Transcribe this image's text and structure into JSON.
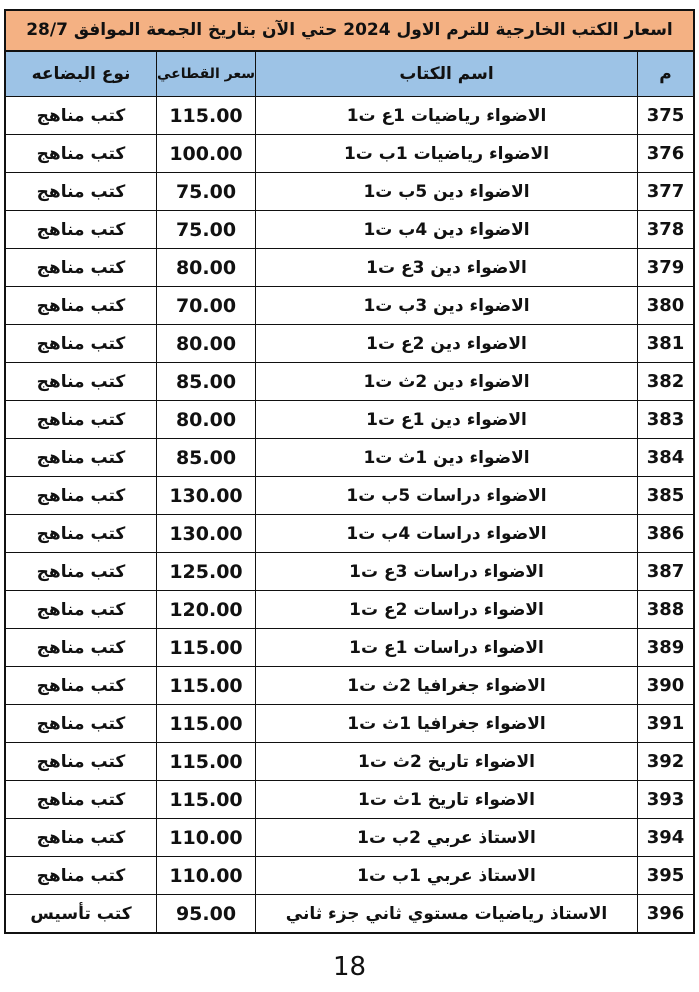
{
  "title": "اسعار الكتب الخارجية للترم الاول 2024 حتي الآن بتاريخ الجمعة الموافق 28/7",
  "headers": {
    "no": "م",
    "name": "اسم الكتاب",
    "price": "سعر القطاعي",
    "type": "نوع البضاعه"
  },
  "rows": [
    {
      "no": "375",
      "name": "الاضواء رياضيات 1ع ت1",
      "price": "115.00",
      "type": "كتب مناهج"
    },
    {
      "no": "376",
      "name": "الاضواء رياضيات 1ب ت1",
      "price": "100.00",
      "type": "كتب مناهج"
    },
    {
      "no": "377",
      "name": "الاضواء دين 5ب ت1",
      "price": "75.00",
      "type": "كتب مناهج"
    },
    {
      "no": "378",
      "name": "الاضواء دين 4ب ت1",
      "price": "75.00",
      "type": "كتب مناهج"
    },
    {
      "no": "379",
      "name": "الاضواء دين 3ع ت1",
      "price": "80.00",
      "type": "كتب مناهج"
    },
    {
      "no": "380",
      "name": "الاضواء دين 3ب ت1",
      "price": "70.00",
      "type": "كتب مناهج"
    },
    {
      "no": "381",
      "name": "الاضواء دين 2ع ت1",
      "price": "80.00",
      "type": "كتب مناهج"
    },
    {
      "no": "382",
      "name": "الاضواء دين 2ث ت1",
      "price": "85.00",
      "type": "كتب مناهج"
    },
    {
      "no": "383",
      "name": "الاضواء دين 1ع ت1",
      "price": "80.00",
      "type": "كتب مناهج"
    },
    {
      "no": "384",
      "name": "الاضواء دين 1ث ت1",
      "price": "85.00",
      "type": "كتب مناهج"
    },
    {
      "no": "385",
      "name": "الاضواء دراسات 5ب ت1",
      "price": "130.00",
      "type": "كتب مناهج"
    },
    {
      "no": "386",
      "name": "الاضواء دراسات 4ب ت1",
      "price": "130.00",
      "type": "كتب مناهج"
    },
    {
      "no": "387",
      "name": "الاضواء دراسات 3ع ت1",
      "price": "125.00",
      "type": "كتب مناهج"
    },
    {
      "no": "388",
      "name": "الاضواء دراسات 2ع ت1",
      "price": "120.00",
      "type": "كتب مناهج"
    },
    {
      "no": "389",
      "name": "الاضواء دراسات 1ع ت1",
      "price": "115.00",
      "type": "كتب مناهج"
    },
    {
      "no": "390",
      "name": "الاضواء جغرافيا 2ث ت1",
      "price": "115.00",
      "type": "كتب مناهج"
    },
    {
      "no": "391",
      "name": "الاضواء جغرافيا 1ث ت1",
      "price": "115.00",
      "type": "كتب مناهج"
    },
    {
      "no": "392",
      "name": "الاضواء تاريخ 2ث ت1",
      "price": "115.00",
      "type": "كتب مناهج"
    },
    {
      "no": "393",
      "name": "الاضواء تاريخ 1ث ت1",
      "price": "115.00",
      "type": "كتب مناهج"
    },
    {
      "no": "394",
      "name": "الاستاذ عربي 2ب ت1",
      "price": "110.00",
      "type": "كتب مناهج"
    },
    {
      "no": "395",
      "name": "الاستاذ عربي 1ب ت1",
      "price": "110.00",
      "type": "كتب مناهج"
    },
    {
      "no": "396",
      "name": "الاستاذ رياضيات مستوي ثاني جزء ثاني",
      "price": "95.00",
      "type": "كتب تأسيس"
    }
  ],
  "page_number": "18",
  "colors": {
    "title_bg": "#f4b183",
    "header_bg": "#9dc3e6"
  }
}
